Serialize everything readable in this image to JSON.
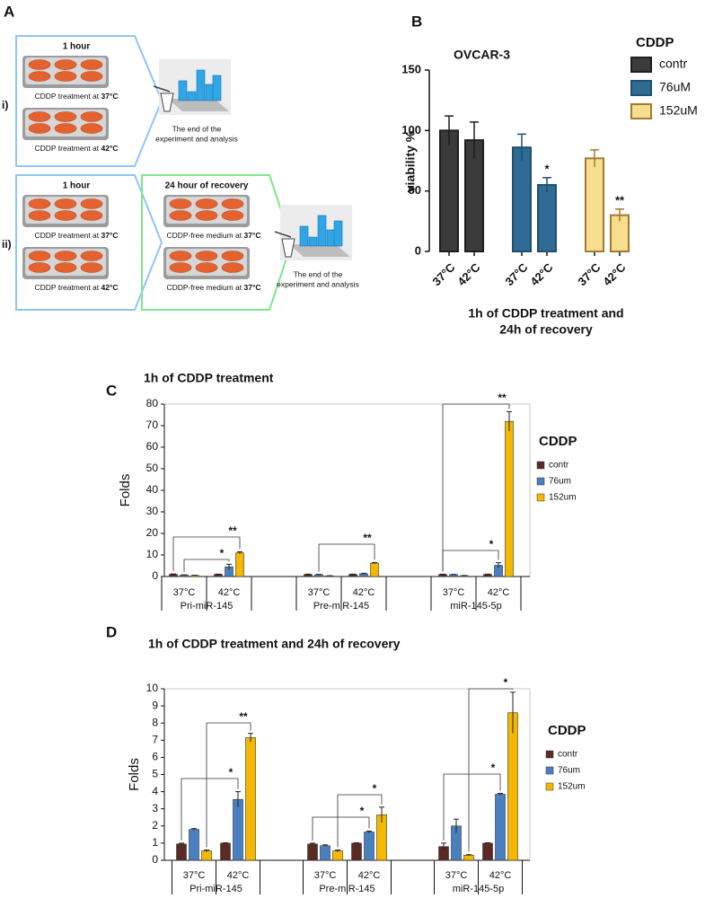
{
  "panel_labels": [
    "A",
    "B",
    "C",
    "D"
  ],
  "diagram": {
    "rows": [
      {
        "label": "i)",
        "steps": [
          {
            "title": "1 hour",
            "items": [
              {
                "text": "CDDP treatment at ",
                "bold": "37°C"
              },
              {
                "text": "CDDP treatment at ",
                "bold": "42°C"
              }
            ]
          }
        ],
        "end": [
          "The end of the",
          "experiment and analysis"
        ]
      },
      {
        "label": "ii)",
        "steps": [
          {
            "title": "1 hour",
            "items": [
              {
                "text": "CDDP treatment at ",
                "bold": "37°C"
              },
              {
                "text": "CDDP treatment at ",
                "bold": "42°C"
              }
            ]
          },
          {
            "title": "24 hour of recovery",
            "items": [
              {
                "text": "CDDP-free medium at ",
                "bold": "37°C"
              },
              {
                "text": "CDDP-free medium at ",
                "bold": "37°C"
              }
            ]
          }
        ],
        "end": [
          "The end of the",
          "experiment and analysis"
        ]
      }
    ]
  },
  "chart_data": [
    {
      "type": "bar",
      "title": "OVCAR-3",
      "categories": [
        "37°C",
        "42°C",
        "37°C",
        "42°C",
        "37°C",
        "42°C"
      ],
      "series": [
        {
          "name": "contr",
          "color": "#3b3b3b",
          "edge_color": "#1e1e1e",
          "values": [
            100,
            92,
            null,
            null,
            null,
            null
          ],
          "errors": [
            12,
            15,
            null,
            null,
            null,
            null
          ]
        },
        {
          "name": "76uM",
          "color": "#2f6b93",
          "edge_color": "#1f4f70",
          "values": [
            null,
            null,
            86,
            55,
            null,
            null
          ],
          "errors": [
            null,
            null,
            11,
            6,
            null,
            null
          ]
        },
        {
          "name": "152uM",
          "color": "#f7de8e",
          "edge_color": "#a07a30",
          "values": [
            null,
            null,
            null,
            null,
            77,
            30
          ],
          "errors": [
            null,
            null,
            null,
            null,
            7,
            5
          ]
        }
      ],
      "ylim": [
        0,
        150
      ],
      "yticks": [
        0,
        50,
        100,
        150
      ],
      "ylabel": "viability %",
      "xlabel": [
        "1h of CDDP treatment and",
        "24h of recovery"
      ],
      "legend_title": "CDDP",
      "significance": [
        "*",
        "**"
      ]
    },
    {
      "type": "grouped_bar",
      "title": "1h of CDDP treatment",
      "categories": [
        "37°C",
        "42°C",
        "37°C",
        "42°C",
        "37°C",
        "42°C"
      ],
      "groups": [
        "Pri-miR-145",
        "Pre-miR-145",
        "miR-145-5p"
      ],
      "series": [
        {
          "name": "contr",
          "color": "#5a2a24",
          "values": [
            1,
            1,
            1,
            1,
            1,
            1
          ],
          "errors": [
            0.2,
            0.1,
            0.1,
            0.1,
            0.1,
            0.1
          ]
        },
        {
          "name": "76um",
          "color": "#4a7fc0",
          "values": [
            0.7,
            4.5,
            0.9,
            1.3,
            0.9,
            5.2
          ],
          "errors": [
            0.1,
            1.2,
            0.1,
            0.2,
            0.1,
            1.2
          ]
        },
        {
          "name": "152um",
          "color": "#f5b800",
          "values": [
            0.5,
            11,
            0.3,
            6.2,
            0.4,
            72
          ],
          "errors": [
            0.1,
            0.5,
            0.1,
            0.3,
            0.1,
            4.5
          ]
        }
      ],
      "ylim": [
        0,
        80
      ],
      "yticks": [
        0,
        10,
        20,
        30,
        40,
        50,
        60,
        70,
        80
      ],
      "ylabel": "Folds",
      "legend_title": "CDDP",
      "significance": [
        "*",
        "**",
        "**",
        "*",
        "**"
      ]
    },
    {
      "type": "grouped_bar",
      "title": "1h of CDDP treatment and 24h of recovery",
      "categories": [
        "37°C",
        "42°C",
        "37°C",
        "42°C",
        "37°C",
        "42°C"
      ],
      "groups": [
        "Pri-miR-145",
        "Pre-miR-145",
        "miR-145-5p"
      ],
      "series": [
        {
          "name": "contr",
          "color": "#5a2a24",
          "values": [
            0.95,
            1.0,
            0.95,
            1.0,
            0.8,
            1.0
          ],
          "errors": [
            0.05,
            0.02,
            0.05,
            0.02,
            0.2,
            0.02
          ]
        },
        {
          "name": "76um",
          "color": "#4a7fc0",
          "values": [
            1.8,
            3.55,
            0.85,
            1.65,
            2.0,
            3.85
          ],
          "errors": [
            0.05,
            0.45,
            0.05,
            0.05,
            0.4,
            0.05
          ]
        },
        {
          "name": "152um",
          "color": "#f5b800",
          "values": [
            0.55,
            7.15,
            0.55,
            2.65,
            0.3,
            8.6
          ],
          "errors": [
            0.05,
            0.25,
            0.05,
            0.45,
            0.03,
            1.2
          ]
        }
      ],
      "ylim": [
        0,
        10
      ],
      "yticks": [
        0,
        1,
        2,
        3,
        4,
        5,
        6,
        7,
        8,
        9,
        10
      ],
      "ylabel": "Folds",
      "legend_title": "CDDP",
      "significance": [
        "*",
        "**",
        "*",
        "*",
        "*",
        "*"
      ]
    }
  ]
}
